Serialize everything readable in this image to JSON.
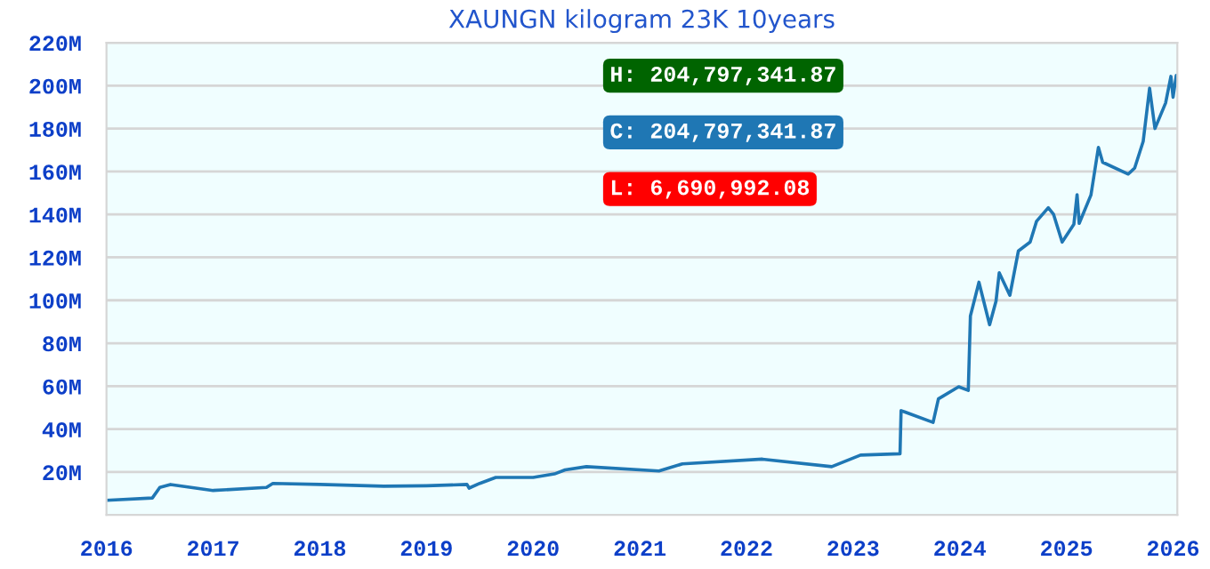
{
  "chart_data": {
    "type": "line",
    "title": "XAUNGN kilogram 23K 10years",
    "x": [
      2016.0,
      2016.43,
      2016.5,
      2016.6,
      2017.0,
      2017.5,
      2017.56,
      2018.0,
      2018.6,
      2019.0,
      2019.38,
      2019.4,
      2019.5,
      2019.65,
      2020.0,
      2020.2,
      2020.3,
      2020.5,
      2021.18,
      2021.4,
      2022.15,
      2022.8,
      2023.07,
      2023.44,
      2023.45,
      2023.75,
      2023.8,
      2023.99,
      2024.08,
      2024.1,
      2024.18,
      2024.28,
      2024.34,
      2024.37,
      2024.47,
      2024.55,
      2024.66,
      2024.72,
      2024.83,
      2024.88,
      2024.96,
      2025.07,
      2025.1,
      2025.12,
      2025.23,
      2025.3,
      2025.34,
      2025.58,
      2025.64,
      2025.72,
      2025.78,
      2025.83,
      2025.93,
      2025.98,
      2026.0,
      2026.03
    ],
    "series": [
      {
        "color": "#1f77b4",
        "values": [
          6.8,
          7.9,
          12.8,
          14.2,
          11.4,
          12.8,
          14.7,
          14.2,
          13.4,
          13.6,
          14.2,
          12.5,
          14.7,
          17.5,
          17.5,
          19.1,
          21.0,
          22.5,
          20.5,
          23.8,
          26.0,
          22.5,
          27.9,
          28.5,
          48.6,
          43.1,
          54.1,
          59.7,
          58.0,
          92.7,
          108.4,
          88.6,
          99.6,
          112.8,
          102.3,
          123.0,
          127.1,
          136.8,
          143.1,
          140.0,
          127.1,
          135.4,
          149.2,
          135.8,
          149.0,
          171.2,
          164.3,
          158.8,
          161.6,
          174.0,
          198.8,
          180.0,
          191.9,
          204.3,
          194.6,
          204.8
        ]
      }
    ],
    "xlim": [
      2016,
      2026.04
    ],
    "xticks": [
      2016,
      2017,
      2018,
      2019,
      2020,
      2021,
      2022,
      2023,
      2024,
      2025,
      2026
    ],
    "ylim": [
      0,
      220
    ],
    "yticks": [
      {
        "value": 20,
        "label": "20M"
      },
      {
        "value": 40,
        "label": "40M"
      },
      {
        "value": 60,
        "label": "60M"
      },
      {
        "value": 80,
        "label": "80M"
      },
      {
        "value": 100,
        "label": "100M"
      },
      {
        "value": 120,
        "label": "120M"
      },
      {
        "value": 140,
        "label": "140M"
      },
      {
        "value": 160,
        "label": "160M"
      },
      {
        "value": 180,
        "label": "180M"
      },
      {
        "value": 200,
        "label": "200M"
      },
      {
        "value": 220,
        "label": "220M"
      }
    ],
    "grid": "y",
    "annotations": [
      "H: 204,797,341.87",
      "C: 204,797,341.87",
      "L: 6,690,992.08"
    ]
  }
}
